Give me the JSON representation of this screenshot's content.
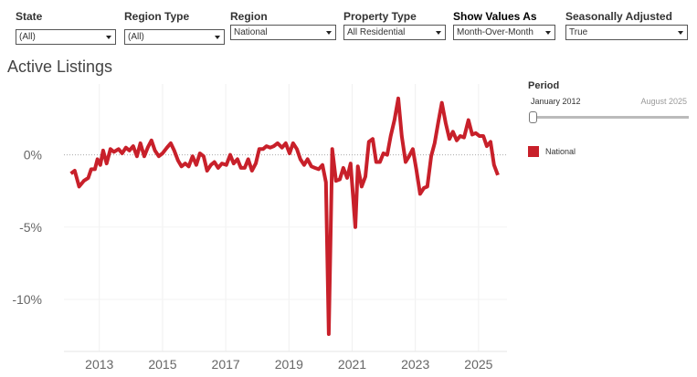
{
  "filters": [
    {
      "label": "State",
      "value": "(All)"
    },
    {
      "label": "Region Type",
      "value": "(All)"
    },
    {
      "label": "Region",
      "value": "National"
    },
    {
      "label": "Property Type",
      "value": "All Residential"
    },
    {
      "label": "Show Values As",
      "value": "Month-Over-Month"
    },
    {
      "label": "Seasonally Adjusted",
      "value": "True"
    }
  ],
  "period": {
    "label": "Period",
    "start": "January 2012",
    "end": "August 2025"
  },
  "chart_data": {
    "type": "line",
    "title": "Active Listings",
    "xlim": [
      2011.88,
      2025.9
    ],
    "ylim": [
      -13.6,
      4.9
    ],
    "xticks": [
      2013,
      2015,
      2017,
      2019,
      2021,
      2023,
      2025
    ],
    "yticks": [
      {
        "value": 0,
        "label": "0%"
      },
      {
        "value": -5,
        "label": "-5%"
      },
      {
        "value": -10,
        "label": "-10%"
      }
    ],
    "grid": true,
    "series": [
      {
        "name": "National",
        "color": "#c8202a",
        "x": [
          2012.1,
          2012.22,
          2012.36,
          2012.51,
          2012.65,
          2012.74,
          2012.86,
          2012.94,
          2013.03,
          2013.12,
          2013.23,
          2013.35,
          2013.46,
          2013.61,
          2013.72,
          2013.84,
          2013.95,
          2014.07,
          2014.19,
          2014.3,
          2014.42,
          2014.53,
          2014.65,
          2014.76,
          2014.88,
          2015.0,
          2015.14,
          2015.26,
          2015.37,
          2015.49,
          2015.6,
          2015.72,
          2015.83,
          2015.95,
          2016.07,
          2016.18,
          2016.3,
          2016.41,
          2016.53,
          2016.64,
          2016.76,
          2016.88,
          2017.02,
          2017.14,
          2017.25,
          2017.37,
          2017.48,
          2017.6,
          2017.71,
          2017.83,
          2017.95,
          2018.06,
          2018.18,
          2018.29,
          2018.41,
          2018.52,
          2018.64,
          2018.78,
          2018.9,
          2019.02,
          2019.13,
          2019.25,
          2019.36,
          2019.48,
          2019.59,
          2019.71,
          2019.82,
          2019.94,
          2020.06,
          2020.17,
          2020.26,
          2020.37,
          2020.49,
          2020.61,
          2020.72,
          2020.84,
          2020.95,
          2021.1,
          2021.18,
          2021.3,
          2021.42,
          2021.53,
          2021.65,
          2021.76,
          2021.88,
          2021.99,
          2022.11,
          2022.22,
          2022.34,
          2022.46,
          2022.57,
          2022.69,
          2022.8,
          2022.92,
          2023.03,
          2023.15,
          2023.27,
          2023.38,
          2023.5,
          2023.61,
          2023.73,
          2023.84,
          2023.96,
          2024.08,
          2024.19,
          2024.31,
          2024.42,
          2024.54,
          2024.68,
          2024.8,
          2024.91,
          2025.03,
          2025.15,
          2025.26,
          2025.38,
          2025.49,
          2025.61
        ],
        "values": [
          -1.3,
          -1.1,
          -2.2,
          -1.8,
          -1.6,
          -1.0,
          -1.0,
          -0.3,
          -0.7,
          0.3,
          -0.6,
          0.4,
          0.2,
          0.4,
          0.1,
          0.5,
          0.3,
          0.6,
          -0.1,
          0.8,
          -0.1,
          0.5,
          1.0,
          0.3,
          -0.1,
          0.1,
          0.5,
          0.8,
          0.3,
          -0.4,
          -0.8,
          -0.6,
          -0.8,
          -0.1,
          -0.7,
          0.1,
          -0.1,
          -1.1,
          -0.7,
          -0.5,
          -0.9,
          -0.6,
          -0.7,
          0,
          -0.6,
          -0.3,
          -0.9,
          -0.9,
          -0.3,
          -1.1,
          -0.6,
          0.4,
          0.4,
          0.6,
          0.5,
          0.6,
          0.8,
          0.5,
          0.8,
          0.1,
          0.8,
          0.4,
          -0.3,
          -0.7,
          -0.3,
          -0.8,
          -0.9,
          -1.0,
          -0.7,
          -1.9,
          -12.4,
          0.4,
          -1.8,
          -1.7,
          -0.9,
          -1.6,
          -0.6,
          -5.0,
          -0.8,
          -2.2,
          -1.5,
          0.9,
          1.1,
          -0.5,
          -0.5,
          0.1,
          0,
          1.3,
          2.4,
          3.9,
          1.3,
          -0.5,
          -0.1,
          0.4,
          -1.0,
          -2.7,
          -2.3,
          -2.2,
          -0.1,
          0.8,
          2.3,
          3.6,
          2.2,
          1.1,
          1.6,
          1.0,
          1.3,
          1.2,
          2.4,
          1.4,
          1.5,
          1.3,
          1.3,
          0.6,
          0.9,
          -0.7,
          -1.4
        ]
      }
    ]
  }
}
